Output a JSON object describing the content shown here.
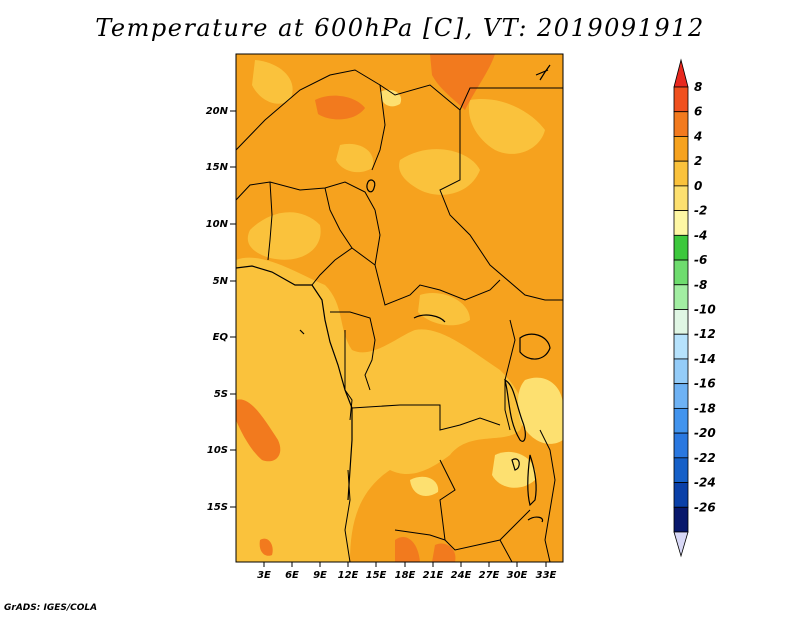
{
  "title": "Temperature at 600hPa [C], VT: 2019091912",
  "credit": "GrADS: IGES/COLA",
  "map": {
    "lat_ticks": [
      "20N",
      "15N",
      "10N",
      "5N",
      "EQ",
      "5S",
      "10S",
      "15S"
    ],
    "lon_ticks": [
      "3E",
      "6E",
      "9E",
      "12E",
      "15E",
      "18E",
      "21E",
      "24E",
      "27E",
      "30E",
      "33E"
    ]
  },
  "colorbar": {
    "labels": [
      "8",
      "6",
      "4",
      "2",
      "0",
      "-2",
      "-4",
      "-6",
      "-8",
      "-10",
      "-12",
      "-14",
      "-16",
      "-18",
      "-20",
      "-22",
      "-24",
      "-26"
    ],
    "colors": [
      "#e8281e",
      "#f0501e",
      "#f27a1e",
      "#f6a21e",
      "#fac23c",
      "#fde070",
      "#fef7a4",
      "#3cc83c",
      "#6edc6e",
      "#a2eea2",
      "#e0f6e4",
      "#b6e2fc",
      "#94ccf8",
      "#6eb2f4",
      "#4294ee",
      "#2a78e0",
      "#1660c8",
      "#0a40a8",
      "#08186c",
      "#d8d8f6"
    ]
  }
}
